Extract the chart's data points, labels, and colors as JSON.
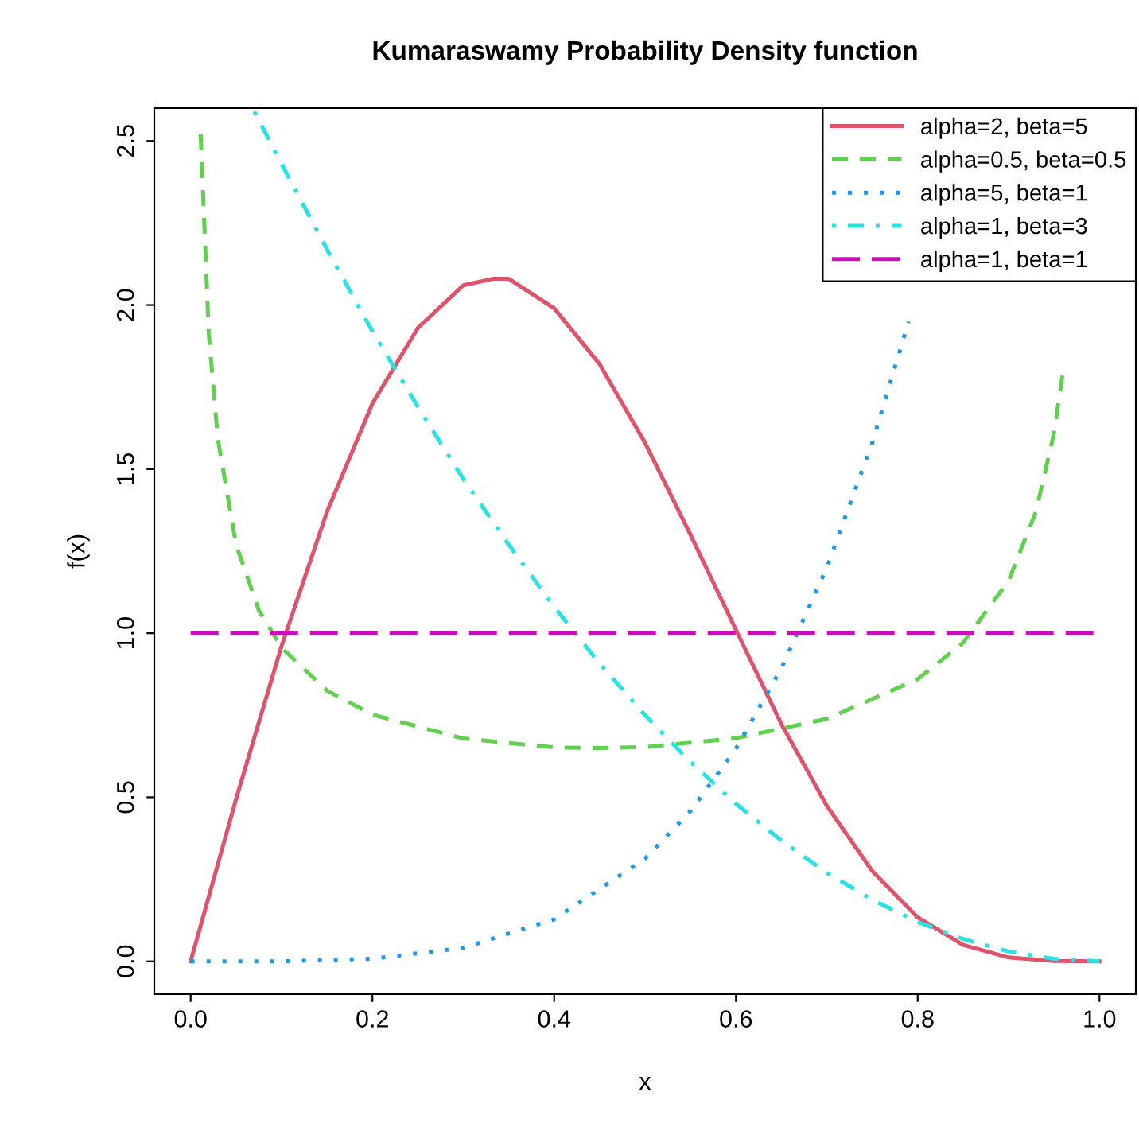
{
  "chart_data": {
    "type": "line",
    "title": "Kumaraswamy Probability Density function",
    "xlabel": "x",
    "ylabel": "f(x)",
    "xlim": [
      -0.04,
      1.04
    ],
    "ylim": [
      -0.1,
      2.6
    ],
    "xticks": [
      {
        "value": 0,
        "label": "0.0"
      },
      0.2,
      0.4,
      0.6,
      0.8,
      {
        "value": 1,
        "label": "1.0"
      }
    ],
    "yticks": [
      {
        "value": 0,
        "label": "0.0"
      },
      0.5,
      {
        "value": 1,
        "label": "1.0"
      },
      1.5,
      {
        "value": 2,
        "label": "2.0"
      },
      2.5
    ],
    "grid": false,
    "legend": "top right",
    "marker": "none",
    "series": [
      {
        "name": "alpha=2, beta=5",
        "color": "#df536b",
        "line_style": "solid",
        "x": [
          0,
          0.05,
          0.1,
          0.15,
          0.2,
          0.25,
          0.3,
          0.333,
          0.35,
          0.4,
          0.45,
          0.5,
          0.55,
          0.6,
          0.65,
          0.7,
          0.75,
          0.8,
          0.85,
          0.9,
          0.95,
          1
        ],
        "values": [
          0,
          0.495,
          0.961,
          1.37,
          1.7,
          1.93,
          2.06,
          2.08,
          2.08,
          1.99,
          1.82,
          1.58,
          1.3,
          1.01,
          0.723,
          0.474,
          0.275,
          0.134,
          0.05,
          0.012,
          0.001,
          0
        ]
      },
      {
        "name": "alpha=0.5, beta=0.5",
        "color": "#61d04f",
        "line_style": "dashed",
        "x": [
          0.011,
          0.02,
          0.03,
          0.05,
          0.075,
          0.1,
          0.15,
          0.2,
          0.3,
          0.4,
          0.45,
          0.5,
          0.6,
          0.7,
          0.8,
          0.85,
          0.9,
          0.93,
          0.95,
          0.96
        ],
        "values": [
          2.52,
          1.91,
          1.59,
          1.27,
          1.07,
          0.956,
          0.825,
          0.752,
          0.679,
          0.652,
          0.65,
          0.653,
          0.68,
          0.739,
          0.86,
          0.971,
          1.16,
          1.37,
          1.61,
          1.8
        ]
      },
      {
        "name": "alpha=5, beta=1",
        "color": "#2297e6",
        "line_style": "dotted",
        "x": [
          0,
          0.1,
          0.2,
          0.3,
          0.4,
          0.5,
          0.55,
          0.6,
          0.65,
          0.7,
          0.75,
          0.79
        ],
        "values": [
          0,
          0.0,
          0.008,
          0.041,
          0.128,
          0.313,
          0.458,
          0.648,
          0.893,
          1.2,
          1.58,
          1.95
        ]
      },
      {
        "name": "alpha=1, beta=3",
        "color": "#28e2e5",
        "line_style": "dashdot",
        "x": [
          0.07,
          0.1,
          0.15,
          0.2,
          0.25,
          0.3,
          0.35,
          0.4,
          0.45,
          0.5,
          0.55,
          0.6,
          0.65,
          0.7,
          0.75,
          0.8,
          0.85,
          0.9,
          0.95,
          1
        ],
        "values": [
          2.59,
          2.43,
          2.17,
          1.92,
          1.69,
          1.47,
          1.27,
          1.08,
          0.908,
          0.75,
          0.608,
          0.48,
          0.368,
          0.27,
          0.188,
          0.12,
          0.068,
          0.03,
          0.008,
          0
        ]
      },
      {
        "name": "alpha=1, beta=1",
        "color": "#cd0bbc",
        "line_style": "longdash",
        "x": [
          0,
          1
        ],
        "values": [
          1,
          1
        ]
      }
    ]
  }
}
